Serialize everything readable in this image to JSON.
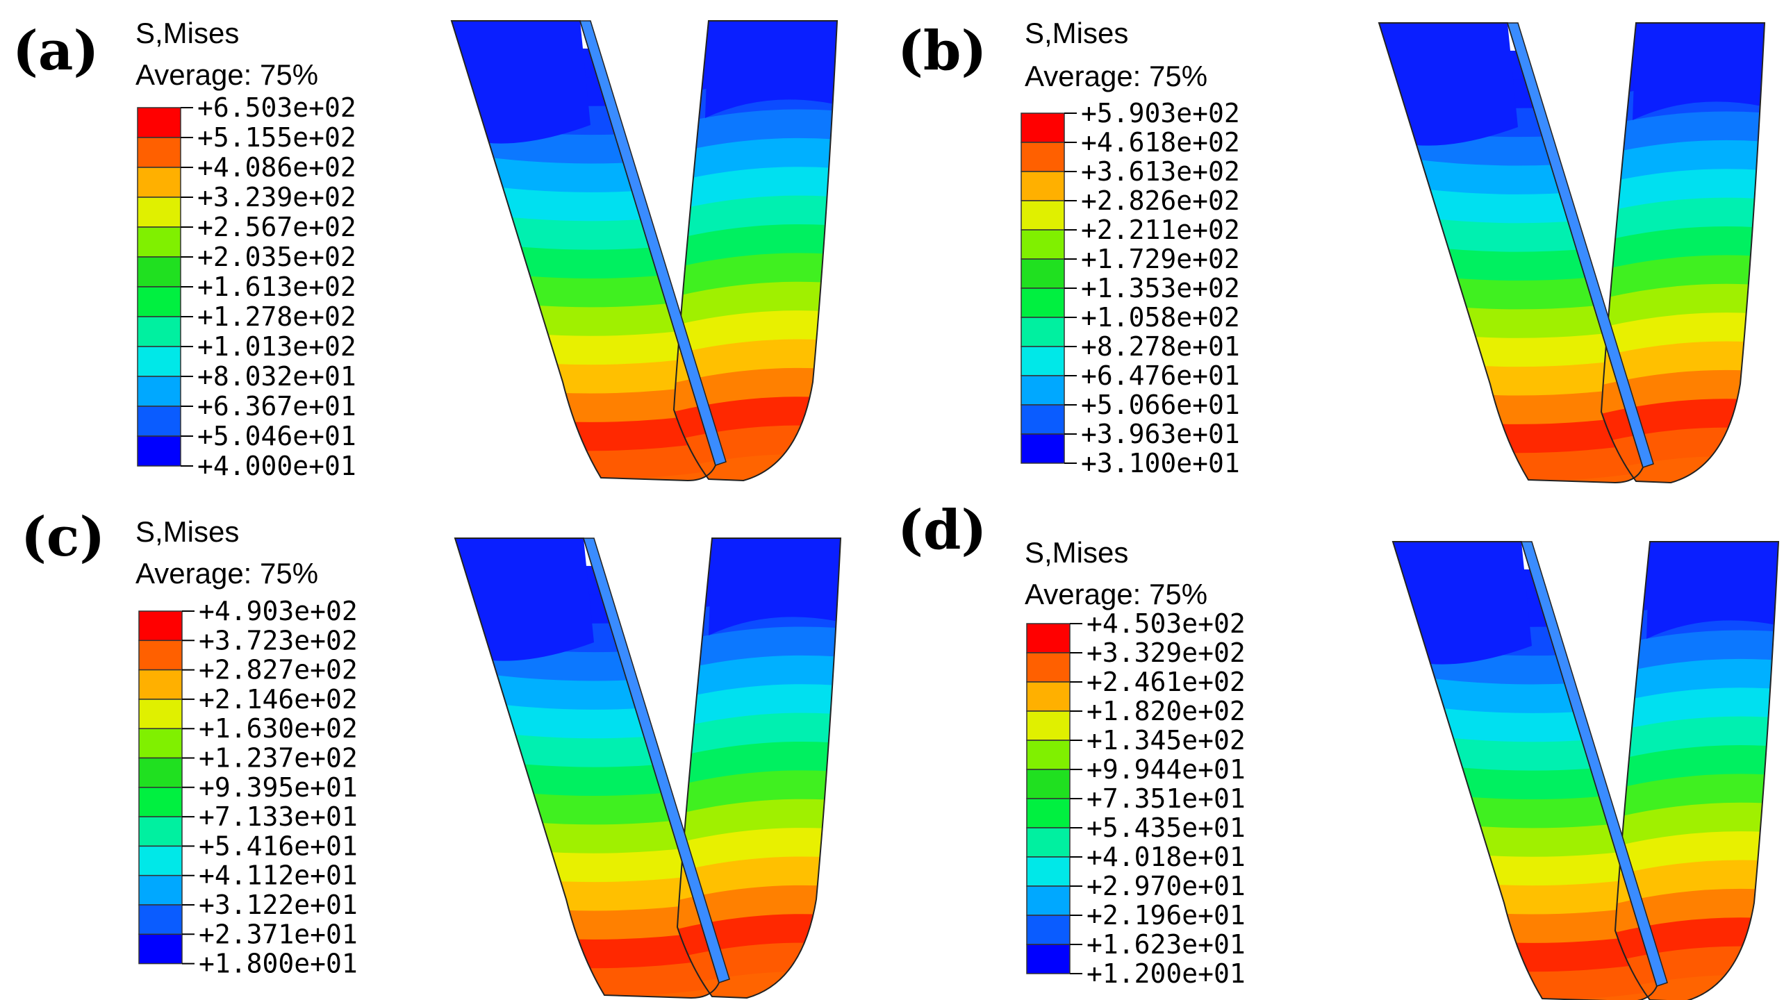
{
  "figure": {
    "colors": [
      "#0000ff",
      "#0a5cff",
      "#00a8ff",
      "#00e8e8",
      "#00f0a0",
      "#00f040",
      "#20e020",
      "#80f000",
      "#e0f000",
      "#ffb000",
      "#ff6000",
      "#ff0000"
    ],
    "panels": [
      {
        "label": "(a)",
        "title": "S,Mises",
        "subtitle": "Average:  75%",
        "ticks": [
          "+6.503e+02",
          "+5.155e+02",
          "+4.086e+02",
          "+3.239e+02",
          "+2.567e+02",
          "+2.035e+02",
          "+1.613e+02",
          "+1.278e+02",
          "+1.013e+02",
          "+8.032e+01",
          "+6.367e+01",
          "+5.046e+01",
          "+4.000e+01"
        ]
      },
      {
        "label": "(b)",
        "title": "S,Mises",
        "subtitle": "Average:  75%",
        "ticks": [
          "+5.903e+02",
          "+4.618e+02",
          "+3.613e+02",
          "+2.826e+02",
          "+2.211e+02",
          "+1.729e+02",
          "+1.353e+02",
          "+1.058e+02",
          "+8.278e+01",
          "+6.476e+01",
          "+5.066e+01",
          "+3.963e+01",
          "+3.100e+01"
        ]
      },
      {
        "label": "(c)",
        "title": "S,Mises",
        "subtitle": "Average:  75%",
        "ticks": [
          "+4.903e+02",
          "+3.723e+02",
          "+2.827e+02",
          "+2.146e+02",
          "+1.630e+02",
          "+1.237e+02",
          "+9.395e+01",
          "+7.133e+01",
          "+5.416e+01",
          "+4.112e+01",
          "+3.122e+01",
          "+2.371e+01",
          "+1.800e+01"
        ]
      },
      {
        "label": "(d)",
        "title": "S,Mises",
        "subtitle": "Average:  75%",
        "ticks": [
          "+4.503e+02",
          "+3.329e+02",
          "+2.461e+02",
          "+1.820e+02",
          "+1.345e+02",
          "+9.944e+01",
          "+7.351e+01",
          "+5.435e+01",
          "+4.018e+01",
          "+2.970e+01",
          "+2.196e+01",
          "+1.623e+01",
          "+1.200e+01"
        ]
      }
    ]
  }
}
